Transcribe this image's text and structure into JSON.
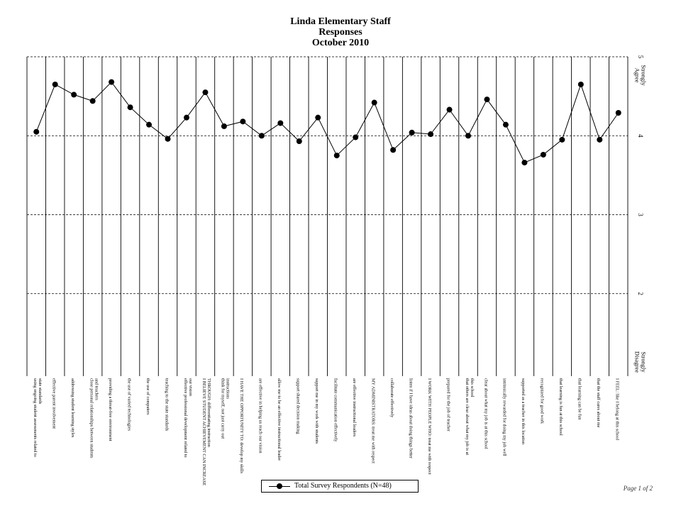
{
  "header": {
    "title_lines": [
      "Linda Elementary Staff",
      "Responses",
      "October 2010"
    ]
  },
  "legend": {
    "label": "Total Survey Respondents (N=48)"
  },
  "footer": {
    "page": "Page 1 of 2"
  },
  "chart_data": {
    "type": "line",
    "title": "Linda Elementary Staff Responses October 2010",
    "ylim": [
      1,
      5
    ],
    "yticks": [
      "5",
      "4",
      "3",
      "2"
    ],
    "y_anchor_labels": {
      "top": "Strongly Agree",
      "bottom": "Strongly Disagree"
    },
    "reference_line": 4,
    "grid": "dashed horizontal at 2, 3, 4, 5",
    "legend_position": "bottom-center",
    "categories": [
      "using ongoing student assessments related to state standards",
      "effective parent involvement",
      "addressing student learning styles",
      "close personal relationships between students and teachers",
      "providing a threat-free environment",
      "the use of varied technologies",
      "the use of computers",
      "teaching to the state standards",
      "effective professional development related to our vision",
      "I BELIEVE STUDENT ACHIEVEMENT CAN INCREASE THROUGH: differentiating instruction",
      "think for myself, not just carry out instructions",
      "I HAVE THE OPPORTUNITY TO: develop my skills",
      "are effective in helping us reach our vision",
      "allow me to be an effective instructional leader",
      "support shared decision making",
      "support me in my work with students",
      "facilitate communication effectively",
      "are effective instructional leaders",
      "MY ADMINISTRATORS: treat me with respect",
      "collaborate effectively",
      "listen if I have ideas about doing things better",
      "I WORK WITH PEOPLE WHO: treat me with respect",
      "prepared for the job of teacher",
      "that others are clear about what my job is at this school",
      "clear about what my job is at this school",
      "intrinsically rewarded for doing my job well",
      "supported as a teacher in this location",
      "recognized for good work",
      "that learning is fun at this school",
      "that learning can be fun",
      "that the staff cares about me",
      "I FEEL: like I belong at this school"
    ],
    "series": [
      {
        "name": "Total Survey Respondents (N=48)",
        "values": [
          4.05,
          4.65,
          4.52,
          4.44,
          4.68,
          4.36,
          4.14,
          3.96,
          4.23,
          4.55,
          4.12,
          4.18,
          4.0,
          4.16,
          3.93,
          4.23,
          3.75,
          3.98,
          4.42,
          3.82,
          4.04,
          4.02,
          4.33,
          4.0,
          4.46,
          4.14,
          3.66,
          3.76,
          3.95,
          4.65,
          3.95,
          4.29
        ]
      }
    ]
  }
}
